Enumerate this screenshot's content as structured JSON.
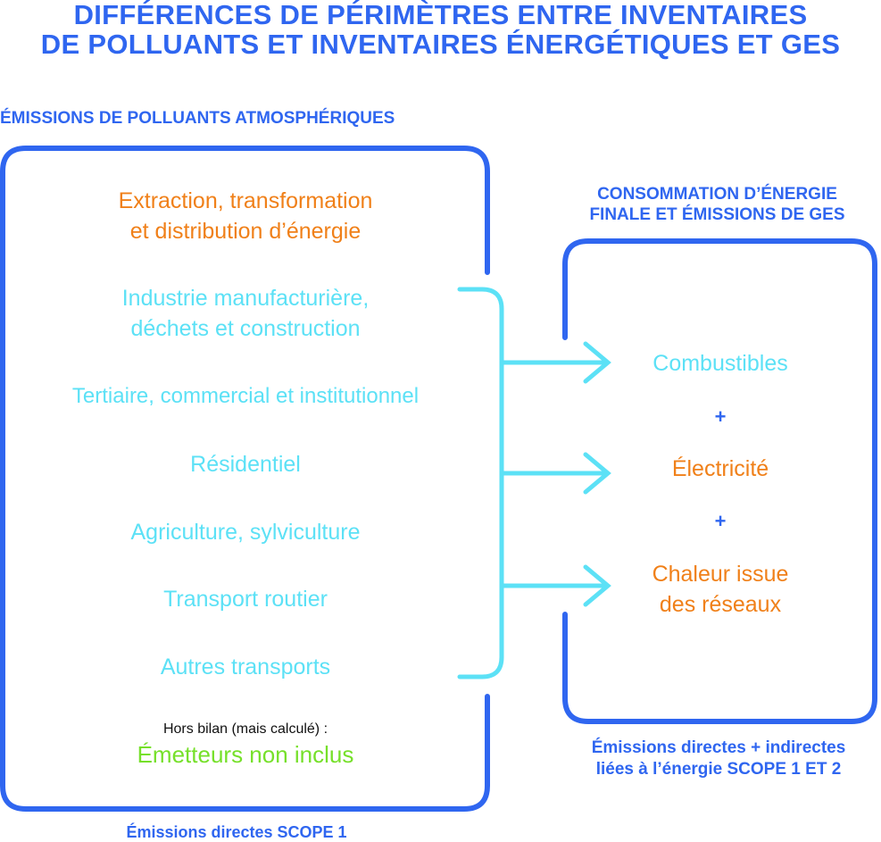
{
  "title": {
    "line1": "DIFFÉRENCES DE PÉRIMÈTRES ENTRE INVENTAIRES",
    "line2": "DE POLLUANTS ET INVENTAIRES ÉNERGÉTIQUES ET GES"
  },
  "left_panel": {
    "heading": "ÉMISSIONS DE POLLUANTS ATMOSPHÉRIQUES",
    "sectors": [
      {
        "line1": "Extraction, transformation",
        "line2": "et distribution d’énergie"
      },
      {
        "line1": "Industrie manufacturière,",
        "line2": "déchets et construction"
      },
      {
        "line1": "Tertiaire, commercial et institutionnel"
      },
      {
        "line1": "Résidentiel"
      },
      {
        "line1": "Agriculture, sylviculture"
      },
      {
        "line1": "Transport routier"
      },
      {
        "line1": "Autres transports"
      }
    ],
    "excluded_note": "Hors bilan (mais calculé) :",
    "excluded_label": "Émetteurs non inclus",
    "footer": "Émissions directes SCOPE 1"
  },
  "right_panel": {
    "heading_line1": "CONSOMMATION D’ÉNERGIE",
    "heading_line2": "FINALE ET ÉMISSIONS DE GES",
    "items": [
      {
        "line1": "Combustibles"
      },
      {
        "line1": "Électricité"
      },
      {
        "line1": "Chaleur issue",
        "line2": "des réseaux"
      }
    ],
    "plus": "+",
    "footer_line1": "Émissions directes + indirectes",
    "footer_line2": "liées à l’énergie SCOPE 1 ET 2"
  },
  "colors": {
    "blue": "#2f66f0",
    "cyan": "#5ce1f6",
    "orange": "#f08019",
    "green": "#76e02a"
  }
}
